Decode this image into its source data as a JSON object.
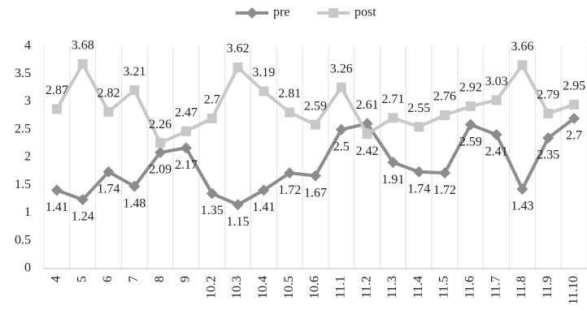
{
  "chart_data": {
    "type": "line",
    "categories": [
      "4",
      "5",
      "6",
      "7",
      "8",
      "9",
      "10.2",
      "10.3",
      "10.4",
      "10.5",
      "10.6",
      "11.1",
      "11.2",
      "11.3",
      "11.4",
      "11.5",
      "11.6",
      "11.7",
      "11.8",
      "11.9",
      "11.10"
    ],
    "series": [
      {
        "name": "pre",
        "color": "#8c8c8c",
        "marker": "diamond",
        "values": [
          1.41,
          1.24,
          1.74,
          1.48,
          2.09,
          2.17,
          1.35,
          1.15,
          1.41,
          1.72,
          1.67,
          2.5,
          2.61,
          1.91,
          1.74,
          1.72,
          2.59,
          2.41,
          1.43,
          2.35,
          2.7
        ]
      },
      {
        "name": "post",
        "color": "#c8c8c8",
        "marker": "square",
        "values": [
          2.87,
          3.68,
          2.82,
          3.21,
          2.26,
          2.47,
          2.7,
          3.62,
          3.19,
          2.81,
          2.59,
          3.26,
          2.42,
          2.71,
          2.55,
          2.76,
          2.92,
          3.03,
          3.66,
          2.79,
          2.95
        ]
      }
    ],
    "ylim": [
      0,
      4
    ],
    "yticks": [
      0,
      0.5,
      1,
      1.5,
      2,
      2.5,
      3,
      3.5,
      4
    ],
    "legend": "top",
    "grid": false
  }
}
